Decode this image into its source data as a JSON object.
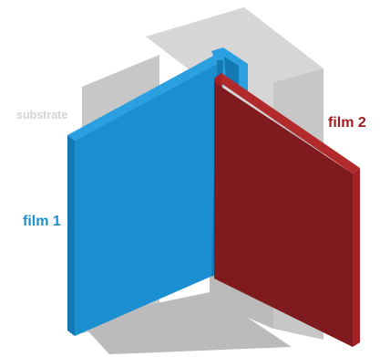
{
  "labels": {
    "substrate": "substrate",
    "film1": "film 1",
    "film2": "film 2"
  },
  "colors": {
    "substrate_label": "#d3d3d3",
    "film1_label": "#1f8fcf",
    "film2_label": "#9c1c1e",
    "substrate_light": "#d6d6d6",
    "substrate_mid": "#c7c7c7",
    "substrate_dark": "#bbbbbb",
    "film1_front": "#1b8ed0",
    "film1_edge": "#1478b3",
    "film1_top": "#2aa0e0",
    "film2_front": "#7f1a1e",
    "film2_edge": "#a32125",
    "film2_top": "#b32a2d"
  }
}
